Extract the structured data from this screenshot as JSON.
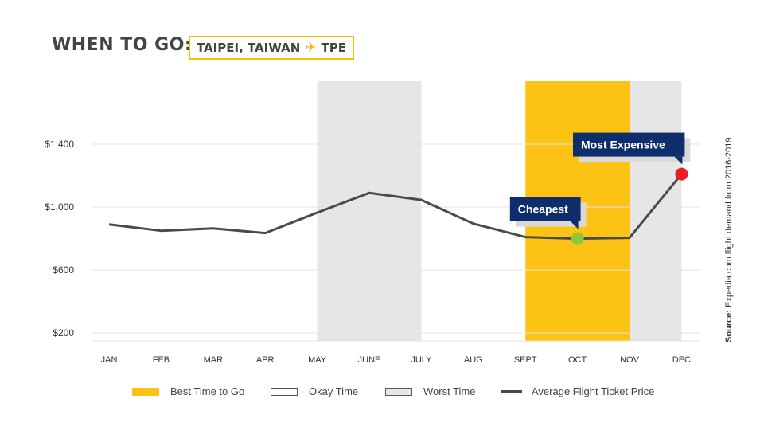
{
  "header": {
    "title": "WHEN TO GO:",
    "city": "TAIPEI, TAIWAN",
    "plane_icon": "plane-icon",
    "airport": "TPE"
  },
  "colors": {
    "best": "#fdc314",
    "worst": "#e6e6e6",
    "line": "#4a4a4a",
    "callout": "#0e2d6d",
    "cheapest_dot": "#8dc63f",
    "expensive_dot": "#ed1c24"
  },
  "chart_data": {
    "type": "line",
    "categories": [
      "JAN",
      "FEB",
      "MAR",
      "APR",
      "MAY",
      "JUNE",
      "JULY",
      "AUG",
      "SEPT",
      "OCT",
      "NOV",
      "DEC"
    ],
    "series": [
      {
        "name": "Average Flight Ticket Price",
        "values": [
          890,
          850,
          865,
          835,
          965,
          1090,
          1045,
          895,
          810,
          800,
          805,
          1210
        ]
      }
    ],
    "ylim": [
      150,
      1800
    ],
    "yticks": [
      {
        "value": 200,
        "label": "$200"
      },
      {
        "value": 600,
        "label": "$600"
      },
      {
        "value": 1000,
        "label": "$1,000"
      },
      {
        "value": 1400,
        "label": "$1,400"
      }
    ],
    "grid": true,
    "bands": [
      {
        "kind": "worst",
        "from": "MAY",
        "to": "JULY"
      },
      {
        "kind": "best",
        "from": "SEPT",
        "to": "NOV"
      },
      {
        "kind": "worst",
        "from": "NOV",
        "to": "DEC"
      }
    ],
    "annotations": [
      {
        "label": "Cheapest",
        "month": "OCT",
        "kind": "cheapest"
      },
      {
        "label": "Most Expensive",
        "month": "DEC",
        "kind": "expensive"
      }
    ]
  },
  "legend": {
    "best": "Best Time to Go",
    "okay": "Okay Time",
    "worst": "Worst Time",
    "line": "Average Flight Ticket Price"
  },
  "source": {
    "label": "Source:",
    "text": "Expedia.com flight demand from 2016-2019"
  }
}
